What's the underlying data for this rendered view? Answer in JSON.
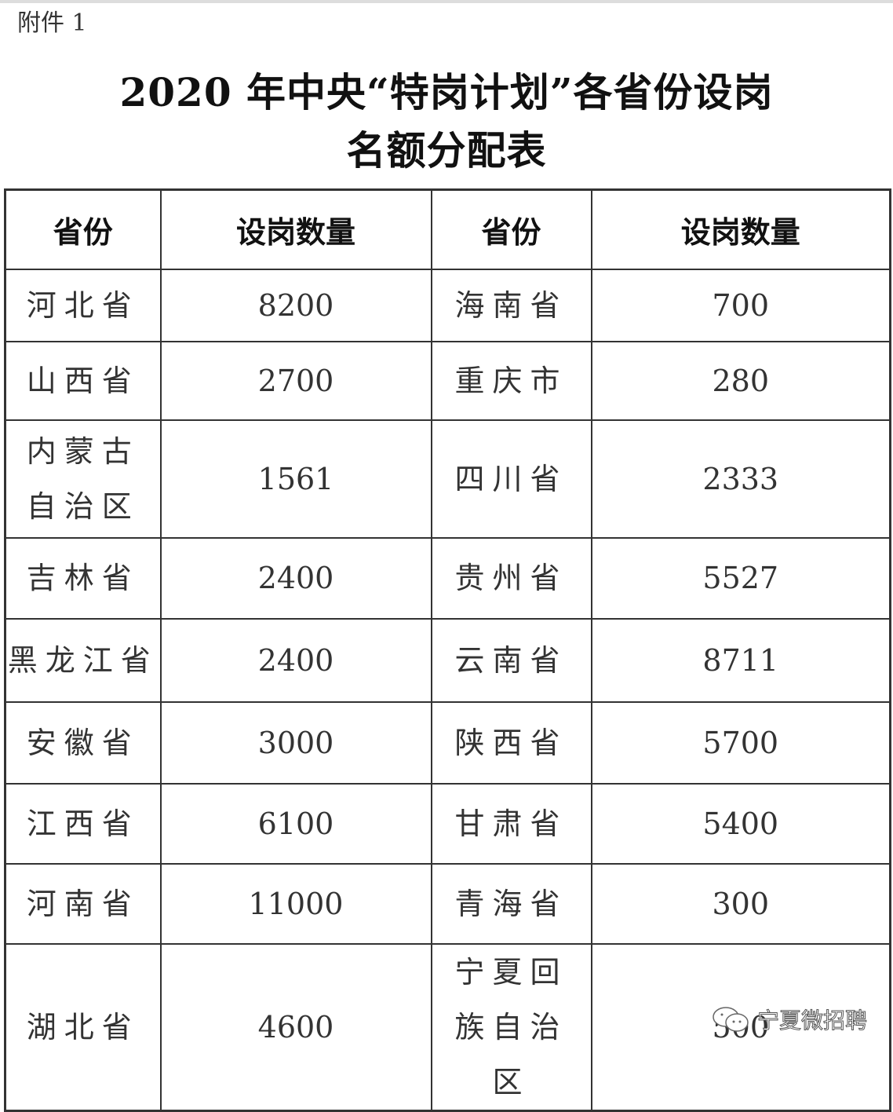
{
  "attachment_label": "附件 1",
  "title_line1": "2020 年中央“特岗计划”各省份设岗",
  "title_line2": "名额分配表",
  "headers": [
    "省份",
    "设岗数量",
    "省份",
    "设岗数量"
  ],
  "rows": [
    [
      "河北省",
      "8200",
      "海南省",
      "700"
    ],
    [
      "山西省",
      "2700",
      "重庆市",
      "280"
    ],
    [
      "内蒙古自治区",
      "1561",
      "四川省",
      "2333"
    ],
    [
      "吉林省",
      "2400",
      "贵州省",
      "5527"
    ],
    [
      "黑龙江省",
      "2400",
      "云南省",
      "8711"
    ],
    [
      "安徽省",
      "3000",
      "陕西省",
      "5700"
    ],
    [
      "江西省",
      "6100",
      "甘肃省",
      "5400"
    ],
    [
      "河南省",
      "11000",
      "青海省",
      "300"
    ],
    [
      "湖北省",
      "4600",
      "宁夏回族自治区",
      "500"
    ]
  ],
  "watermark": "宁夏微招聘",
  "watermark_icon": "wechat-icon"
}
